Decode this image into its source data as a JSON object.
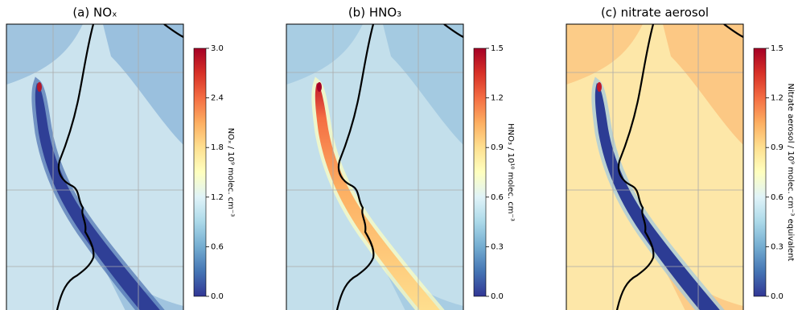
{
  "panels": [
    {
      "title": "(a) NOₓ",
      "colorbar": {
        "label": "NOₓ / 10⁹ molec. cm⁻³",
        "lim": [
          0,
          3
        ],
        "ticks": [
          {
            "value": 0,
            "label": "0.0"
          },
          0.6,
          1.2,
          1.8,
          2.4,
          {
            "value": 3,
            "label": "3.0"
          }
        ]
      }
    },
    {
      "title": "(b) HNO₃",
      "colorbar": {
        "label": "HNO₃ / 10¹⁰ molec. cm⁻³",
        "lim": [
          0,
          1.5
        ],
        "ticks": [
          {
            "value": 0,
            "label": "0.0"
          },
          0.3,
          0.6,
          0.9,
          1.2,
          1.5
        ]
      }
    },
    {
      "title": "(c) nitrate aerosol",
      "colorbar": {
        "label": "Nitrate aerosol / 10⁹ molec. cm⁻³ equivalent",
        "lim": [
          0,
          1.5
        ],
        "ticks": [
          {
            "value": 0,
            "label": "0.0"
          },
          0.3,
          0.6,
          0.9,
          1.2,
          1.5
        ]
      }
    }
  ]
}
